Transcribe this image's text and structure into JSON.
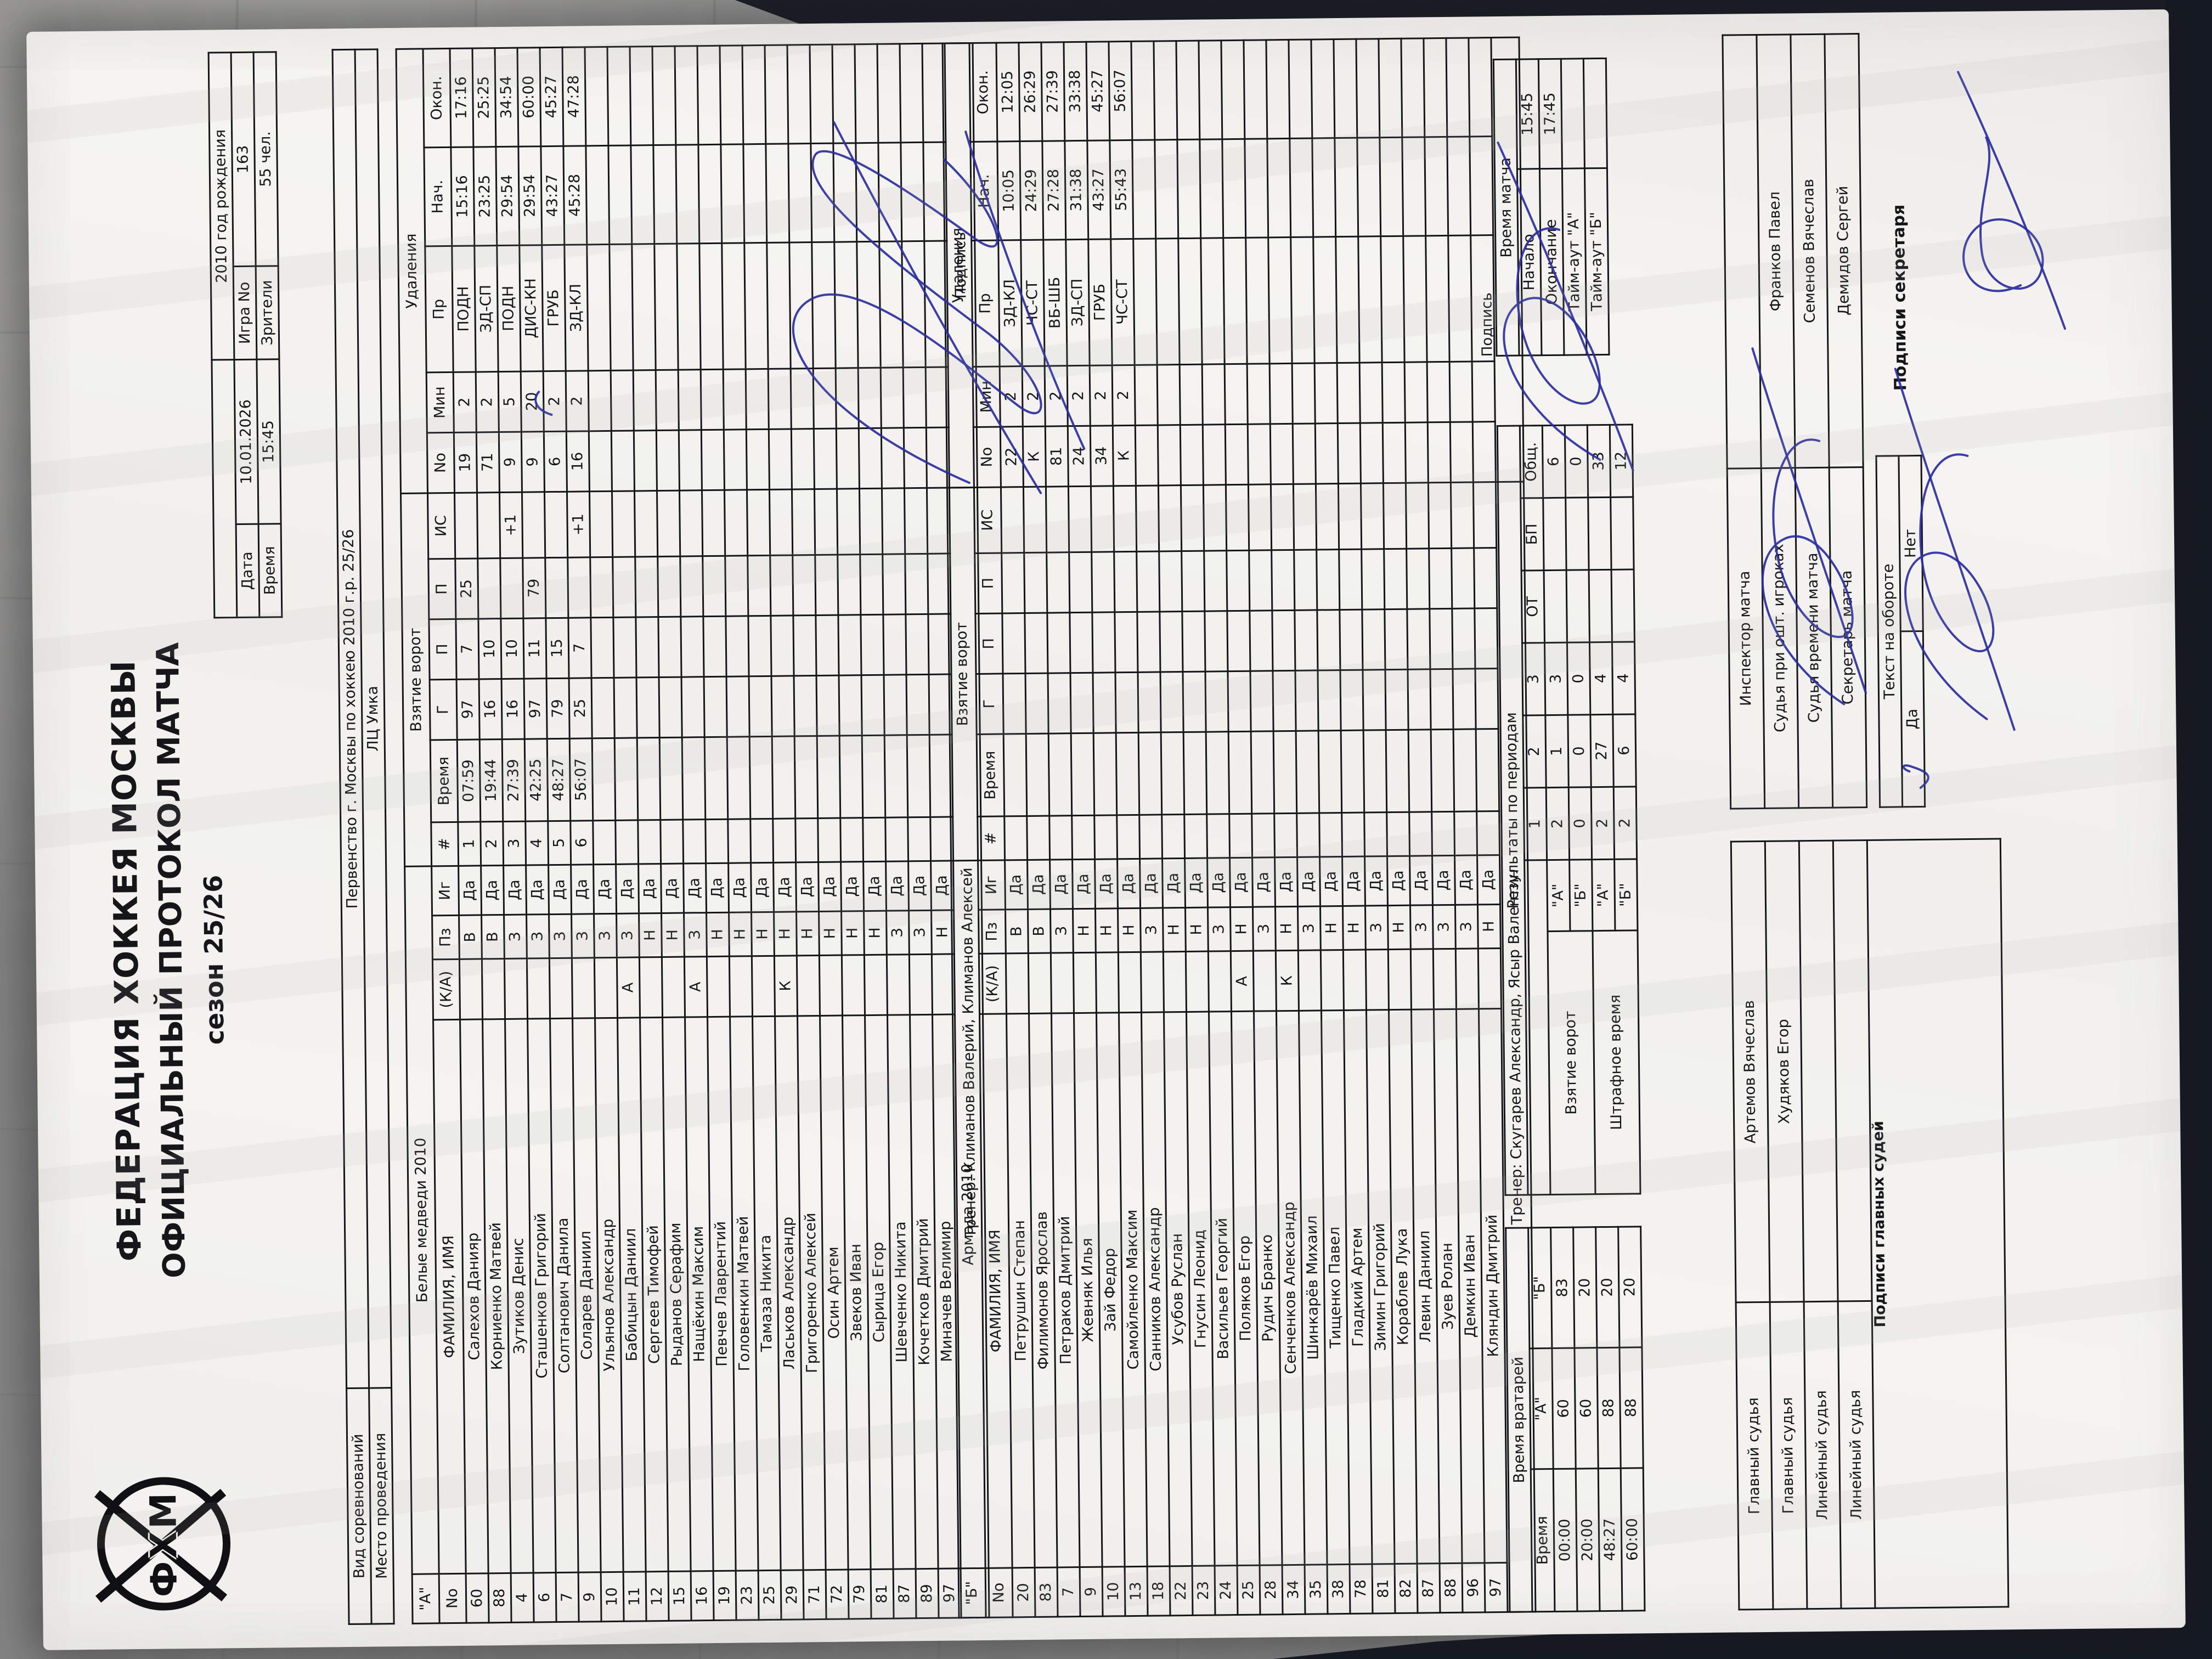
{
  "colors": {
    "paper": "#f3f2ef",
    "ink": "#15151a",
    "pen_blue": "#2b2e9e",
    "floor": "#9a9997",
    "dark_background": "#171a23"
  },
  "header": {
    "federation": "ФЕДЕРАЦИЯ ХОККЕЯ МОСКВЫ",
    "protocol": "ОФИЦИАЛЬНЫЙ ПРОТОКОЛ МАТЧА",
    "season": "сезон 25/26",
    "logo_text": "ФХМ",
    "birth_year_box": "2010 год рождения",
    "date_label": "Дата",
    "date_value": "10.01.2026",
    "game_label": "Игра No",
    "game_value": "163",
    "time_label": "Время",
    "time_value": "15:45",
    "spectators_label": "Зрители",
    "spectators_value": "55 чел.",
    "competition_label": "Вид соревнований",
    "competition_value": "Первенство г. Москвы по хоккею 2010 г.р. 25/26",
    "venue_label": "Место проведения",
    "venue_value": "ЛЦ Умка"
  },
  "roster_headers": {
    "num": "No",
    "name": "ФАМИЛИЯ, ИМЯ",
    "ka": "(К/А)",
    "pz": "Пз",
    "ig": "Иг",
    "goals_title": "Взятие ворот",
    "goal_num": "#",
    "time": "Время",
    "g": "Г",
    "p": "П",
    "p2": "П",
    "is": "ИС",
    "pen_title": "Удаления",
    "pen_num": "No",
    "pen_min": "Мин",
    "pen_code": "Пр",
    "pen_start": "Нач.",
    "pen_end": "Окон.",
    "sign_label": "Подпись"
  },
  "team_a": {
    "letter": "\"А\"",
    "name": "Белые медведи 2010",
    "coaches": "Тренер: Климанов Валерий, Климанов Алексей",
    "sign": "Подпись",
    "players": [
      {
        "num": "60",
        "name": "Салехов Данияр",
        "ka": "",
        "pz": "В",
        "ig": "Да"
      },
      {
        "num": "88",
        "name": "Корниенко Матвей",
        "ka": "",
        "pz": "В",
        "ig": "Да"
      },
      {
        "num": "4",
        "name": "Зутиков Денис",
        "ka": "",
        "pz": "З",
        "ig": "Да"
      },
      {
        "num": "6",
        "name": "Сташенков Григорий",
        "ka": "",
        "pz": "З",
        "ig": "Да"
      },
      {
        "num": "7",
        "name": "Солтанович Данила",
        "ka": "",
        "pz": "З",
        "ig": "Да"
      },
      {
        "num": "9",
        "name": "Соларев Даниил",
        "ka": "",
        "pz": "З",
        "ig": "Да"
      },
      {
        "num": "10",
        "name": "Ульянов Александр",
        "ka": "",
        "pz": "З",
        "ig": "Да"
      },
      {
        "num": "11",
        "name": "Бабицын Даниил",
        "ka": "А",
        "pz": "З",
        "ig": "Да"
      },
      {
        "num": "12",
        "name": "Сергеев Тимофей",
        "ka": "",
        "pz": "Н",
        "ig": "Да"
      },
      {
        "num": "15",
        "name": "Рыданов Серафим",
        "ka": "",
        "pz": "Н",
        "ig": "Да"
      },
      {
        "num": "16",
        "name": "Нащёкин Максим",
        "ka": "А",
        "pz": "З",
        "ig": "Да"
      },
      {
        "num": "19",
        "name": "Певчев Лаврентий",
        "ka": "",
        "pz": "Н",
        "ig": "Да"
      },
      {
        "num": "23",
        "name": "Головенкин Матвей",
        "ka": "",
        "pz": "Н",
        "ig": "Да"
      },
      {
        "num": "25",
        "name": "Тамаза Никита",
        "ka": "",
        "pz": "Н",
        "ig": "Да"
      },
      {
        "num": "29",
        "name": "Ласьков Александр",
        "ka": "К",
        "pz": "Н",
        "ig": "Да"
      },
      {
        "num": "71",
        "name": "Григоренко Алексей",
        "ka": "",
        "pz": "Н",
        "ig": "Да"
      },
      {
        "num": "72",
        "name": "Осин Артем",
        "ka": "",
        "pz": "Н",
        "ig": "Да"
      },
      {
        "num": "79",
        "name": "Звеков Иван",
        "ka": "",
        "pz": "Н",
        "ig": "Да"
      },
      {
        "num": "81",
        "name": "Сырица Егор",
        "ka": "",
        "pz": "Н",
        "ig": "Да"
      },
      {
        "num": "87",
        "name": "Шевченко Никита",
        "ka": "",
        "pz": "З",
        "ig": "Да"
      },
      {
        "num": "89",
        "name": "Кочетков Дмитрий",
        "ka": "",
        "pz": "З",
        "ig": "Да"
      },
      {
        "num": "97",
        "name": "Миначев Велимир",
        "ka": "",
        "pz": "Н",
        "ig": "Да"
      }
    ],
    "goals": [
      {
        "n": "1",
        "time": "07:59",
        "g": "97",
        "a1": "7",
        "a2": "25",
        "is": ""
      },
      {
        "n": "2",
        "time": "19:44",
        "g": "16",
        "a1": "10",
        "a2": "",
        "is": ""
      },
      {
        "n": "3",
        "time": "27:39",
        "g": "16",
        "a1": "10",
        "a2": "",
        "is": "+1"
      },
      {
        "n": "4",
        "time": "42:25",
        "g": "97",
        "a1": "11",
        "a2": "79",
        "is": ""
      },
      {
        "n": "5",
        "time": "48:27",
        "g": "79",
        "a1": "15",
        "a2": "",
        "is": ""
      },
      {
        "n": "6",
        "time": "56:07",
        "g": "25",
        "a1": "7",
        "a2": "",
        "is": "+1"
      }
    ],
    "penalties": [
      {
        "num": "19",
        "min": "2",
        "code": "ПОДН",
        "start": "15:16",
        "end": "17:16"
      },
      {
        "num": "71",
        "min": "2",
        "code": "ЗД-СП",
        "start": "23:25",
        "end": "25:25"
      },
      {
        "num": "9",
        "min": "5",
        "code": "ПОДН",
        "start": "29:54",
        "end": "34:54"
      },
      {
        "num": "9",
        "min": "20",
        "code": "ДИС-КН",
        "start": "29:54",
        "end": "60:00"
      },
      {
        "num": "6",
        "min": "2",
        "code": "ГРУБ",
        "start": "43:27",
        "end": "45:27"
      },
      {
        "num": "16",
        "min": "2",
        "code": "ЗД-КЛ",
        "start": "45:28",
        "end": "47:28"
      }
    ]
  },
  "team_b": {
    "letter": "\"Б\"",
    "name": "Армада 2010",
    "coaches": "Тренер: Скугарев Александр, Ясыр Валентин",
    "sign": "",
    "players": [
      {
        "num": "20",
        "name": "Петрушин Степан",
        "ka": "",
        "pz": "В",
        "ig": "Да"
      },
      {
        "num": "83",
        "name": "Филимонов Ярослав",
        "ka": "",
        "pz": "В",
        "ig": "Да"
      },
      {
        "num": "7",
        "name": "Петраков Дмитрий",
        "ka": "",
        "pz": "З",
        "ig": "Да"
      },
      {
        "num": "9",
        "name": "Жевняк Илья",
        "ka": "",
        "pz": "Н",
        "ig": "Да"
      },
      {
        "num": "10",
        "name": "Зай Федор",
        "ka": "",
        "pz": "Н",
        "ig": "Да"
      },
      {
        "num": "13",
        "name": "Самойленко Максим",
        "ka": "",
        "pz": "Н",
        "ig": "Да"
      },
      {
        "num": "18",
        "name": "Санников Александр",
        "ka": "",
        "pz": "З",
        "ig": "Да"
      },
      {
        "num": "22",
        "name": "Усубов Руслан",
        "ka": "",
        "pz": "Н",
        "ig": "Да"
      },
      {
        "num": "23",
        "name": "Гнусин Леонид",
        "ka": "",
        "pz": "Н",
        "ig": "Да"
      },
      {
        "num": "24",
        "name": "Васильев Георгий",
        "ka": "",
        "pz": "З",
        "ig": "Да"
      },
      {
        "num": "25",
        "name": "Поляков Егор",
        "ka": "А",
        "pz": "Н",
        "ig": "Да"
      },
      {
        "num": "28",
        "name": "Рудич Бранко",
        "ka": "",
        "pz": "З",
        "ig": "Да"
      },
      {
        "num": "34",
        "name": "Сенченков Александр",
        "ka": "К",
        "pz": "Н",
        "ig": "Да"
      },
      {
        "num": "35",
        "name": "Шинкарёв Михаил",
        "ka": "",
        "pz": "З",
        "ig": "Да"
      },
      {
        "num": "38",
        "name": "Тищенко Павел",
        "ka": "",
        "pz": "Н",
        "ig": "Да"
      },
      {
        "num": "78",
        "name": "Гладкий Артем",
        "ka": "",
        "pz": "Н",
        "ig": "Да"
      },
      {
        "num": "81",
        "name": "Зимин Григорий",
        "ka": "",
        "pz": "З",
        "ig": "Да"
      },
      {
        "num": "82",
        "name": "Кораблев Лука",
        "ka": "",
        "pz": "Н",
        "ig": "Да"
      },
      {
        "num": "87",
        "name": "Левин Даниил",
        "ka": "",
        "pz": "З",
        "ig": "Да"
      },
      {
        "num": "88",
        "name": "Зуев Ролан",
        "ka": "",
        "pz": "З",
        "ig": "Да"
      },
      {
        "num": "96",
        "name": "Демкин Иван",
        "ka": "",
        "pz": "З",
        "ig": "Да"
      },
      {
        "num": "97",
        "name": "Кляндин Дмитрий",
        "ka": "",
        "pz": "Н",
        "ig": "Да"
      }
    ],
    "goals": [],
    "penalties": [
      {
        "num": "22",
        "min": "2",
        "code": "ЗД-КЛ",
        "start": "10:05",
        "end": "12:05"
      },
      {
        "num": "К",
        "min": "2",
        "code": "ЧС-СТ",
        "start": "24:29",
        "end": "26:29"
      },
      {
        "num": "81",
        "min": "2",
        "code": "ВБ-ШБ",
        "start": "27:28",
        "end": "27:39"
      },
      {
        "num": "24",
        "min": "2",
        "code": "ЗД-СП",
        "start": "31:38",
        "end": "33:38"
      },
      {
        "num": "34",
        "min": "2",
        "code": "ГРУБ",
        "start": "43:27",
        "end": "45:27"
      },
      {
        "num": "К",
        "min": "2",
        "code": "ЧС-СТ",
        "start": "55:43",
        "end": "56:07"
      }
    ]
  },
  "goalie_times": {
    "title": "Время вратарей",
    "cols": [
      "Время",
      "\"А\"",
      "\"Б\""
    ],
    "rows": [
      [
        "00:00",
        "60",
        "83"
      ],
      [
        "20:00",
        "60",
        "20"
      ],
      [
        "48:27",
        "88",
        "20"
      ],
      [
        "60:00",
        "88",
        "20"
      ]
    ]
  },
  "period_results": {
    "title": "Результаты по периодам",
    "cols": [
      "1",
      "2",
      "3",
      "ОТ",
      "БП",
      "Общ."
    ],
    "sections": [
      {
        "label": "Взятие ворот",
        "rows": [
          {
            "team": "\"А\"",
            "vals": [
              "2",
              "1",
              "3",
              "",
              "",
              "6"
            ]
          },
          {
            "team": "\"Б\"",
            "vals": [
              "0",
              "0",
              "0",
              "",
              "",
              "0"
            ]
          }
        ]
      },
      {
        "label": "Штрафное время",
        "rows": [
          {
            "team": "\"А\"",
            "vals": [
              "2",
              "27",
              "4",
              "",
              "",
              "33"
            ]
          },
          {
            "team": "\"Б\"",
            "vals": [
              "2",
              "6",
              "4",
              "",
              "",
              "12"
            ]
          }
        ]
      }
    ],
    "sign_label": "Подпись"
  },
  "match_time": {
    "title": "Время матча",
    "rows": [
      [
        "Начало",
        "15:45"
      ],
      [
        "Окончание",
        "17:45"
      ],
      [
        "Тайм-аут \"А\"",
        ""
      ],
      [
        "Тайм-аут \"Б\"",
        ""
      ]
    ]
  },
  "officials": {
    "left": [
      [
        "Главный судья",
        "Артемов Вячеслав"
      ],
      [
        "Главный судья",
        "Худяков Егор"
      ],
      [
        "Линейный судья",
        ""
      ],
      [
        "Линейный судья",
        ""
      ]
    ],
    "left_footer": "Подписи главных судей",
    "right": [
      [
        "Инспектор матча",
        ""
      ],
      [
        "Судья при ошт. игроках",
        "Франков Павел"
      ],
      [
        "Судья времени матча",
        "Семенов Вячеслав"
      ],
      [
        "Секретарь матча",
        "Демидов Сергей"
      ]
    ],
    "reverse_label": "Текст на обороте",
    "yes": "Да",
    "no": "Нет",
    "secretary_sign": "Подписи секретаря"
  }
}
